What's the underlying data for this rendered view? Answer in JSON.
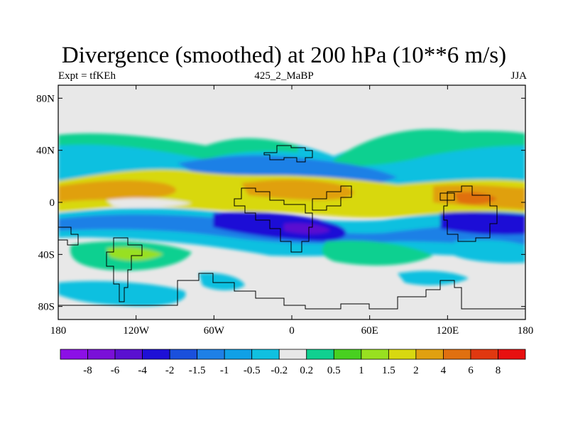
{
  "title": "Divergence (smoothed) at 200 hPa (10**6 m/s)",
  "subtitle_left": "Expt = tfKEh",
  "subtitle_center": "425_2_MaBP",
  "subtitle_right": "JJA",
  "map": {
    "lat_ticks": [
      {
        "label": "80N",
        "value": 80
      },
      {
        "label": "40N",
        "value": 40
      },
      {
        "label": "0",
        "value": 0
      },
      {
        "label": "40S",
        "value": -40
      },
      {
        "label": "80S",
        "value": -80
      }
    ],
    "lon_ticks": [
      {
        "label": "180",
        "value": -180
      },
      {
        "label": "120W",
        "value": -120
      },
      {
        "label": "60W",
        "value": -60
      },
      {
        "label": "0",
        "value": 0
      },
      {
        "label": "60E",
        "value": 60
      },
      {
        "label": "120E",
        "value": 120
      },
      {
        "label": "180",
        "value": 180
      }
    ],
    "lat_range": [
      -90,
      90
    ],
    "lon_range": [
      -180,
      180
    ]
  },
  "colorbar": {
    "colors": [
      "#8c10e6",
      "#7a10d8",
      "#5a10d0",
      "#1e10d6",
      "#1a50dc",
      "#1e80e6",
      "#10a0e6",
      "#10c0e0",
      "#e8e8e8",
      "#10d090",
      "#48d020",
      "#98e020",
      "#d8d810",
      "#e0a010",
      "#e07010",
      "#e03810",
      "#e81010"
    ],
    "labels": [
      "-8",
      "-6",
      "-4",
      "-2",
      "-1.5",
      "-1",
      "-0.5",
      "-0.2",
      "0.2",
      "0.5",
      "1",
      "1.5",
      "2",
      "4",
      "6",
      "8"
    ]
  }
}
